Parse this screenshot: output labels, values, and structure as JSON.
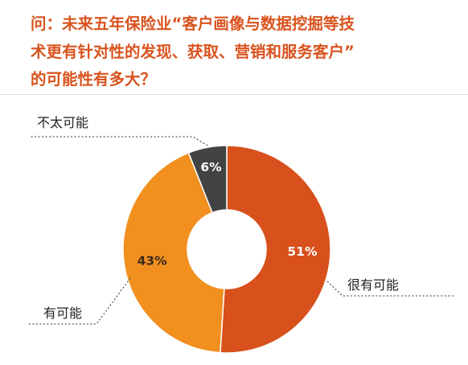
{
  "title": {
    "line1": "问：未来五年保险业“客户画像与数据挖掘等技",
    "line2": "术更有针对性的发现、获取、营销和服务客户”",
    "line3": "的可能性有多大？"
  },
  "colors": {
    "title": "#d9531e",
    "rule": "#ecd9d0",
    "leader": "#5a5a5a",
    "label": "#222222"
  },
  "chart_data": {
    "type": "pie",
    "donut": true,
    "legend": "none",
    "start": "top, clockwise",
    "slices": [
      {
        "label": "很有可能",
        "value": 51,
        "display": "51%",
        "color": "#d8501b",
        "text_color": "#ffffff"
      },
      {
        "label": "有可能",
        "value": 43,
        "display": "43%",
        "color": "#f18f1f",
        "text_color": "#3a2a1a"
      },
      {
        "label": "不太可能",
        "value": 6,
        "display": "6%",
        "color": "#414244",
        "text_color": "#ffffff"
      }
    ]
  }
}
